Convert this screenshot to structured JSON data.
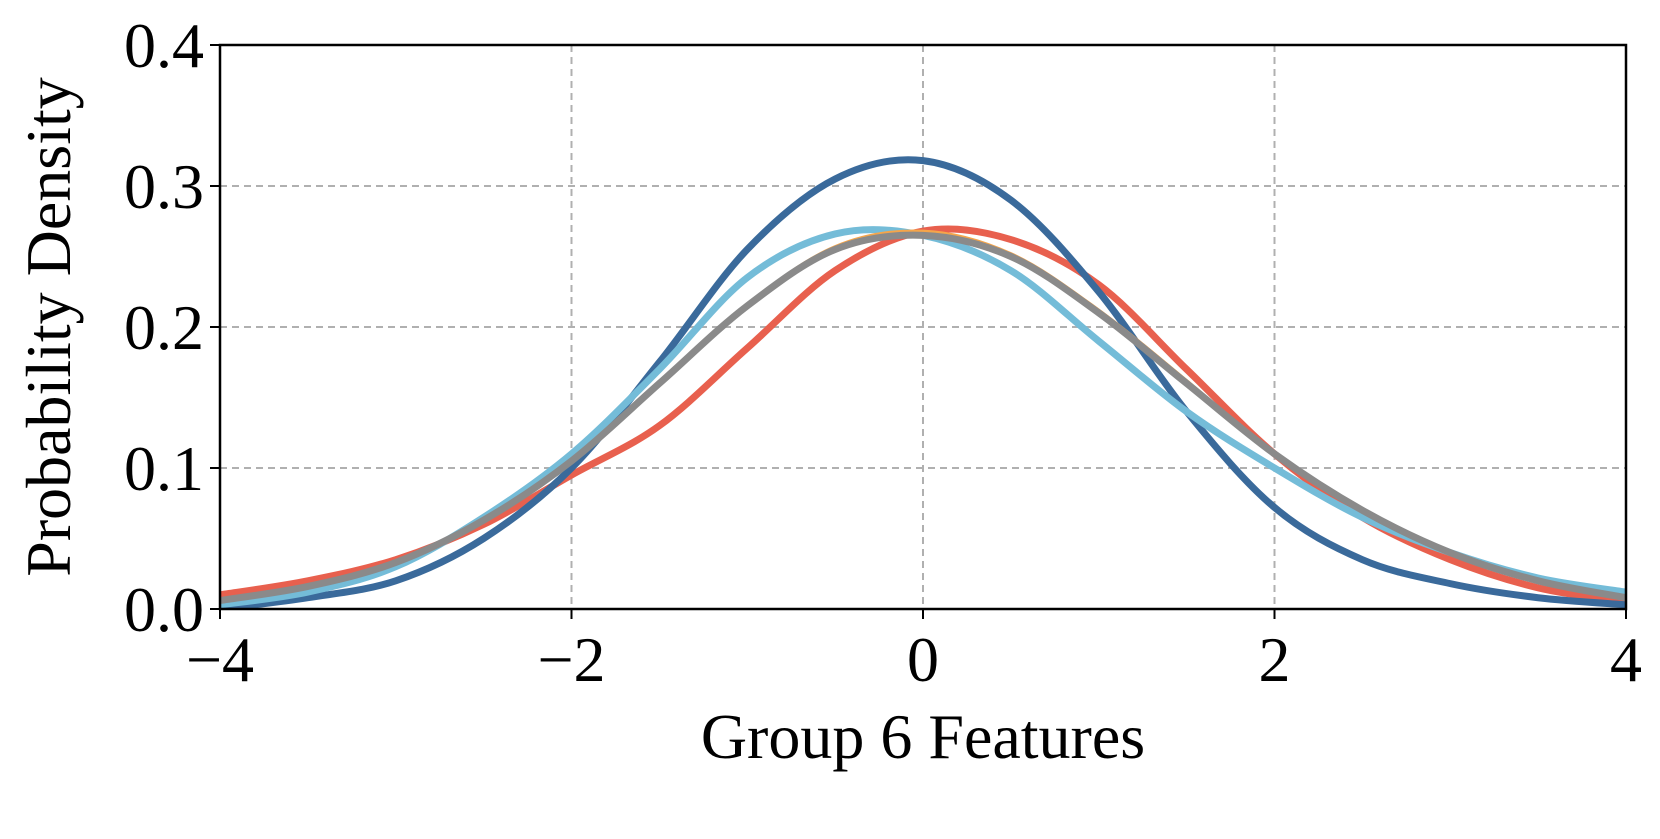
{
  "chart_data": {
    "type": "line",
    "x_label": "Group 6 Features",
    "y_label": "Probability Density",
    "x": [
      -4,
      -3.5,
      -3,
      -2.5,
      -2,
      -1.5,
      -1,
      -0.5,
      0,
      0.5,
      1,
      1.5,
      2,
      2.5,
      3,
      3.5,
      4
    ],
    "series": [
      {
        "color": "#e8604e",
        "width": 7,
        "values": [
          0.01,
          0.02,
          0.035,
          0.06,
          0.095,
          0.13,
          0.185,
          0.24,
          0.268,
          0.262,
          0.23,
          0.17,
          0.11,
          0.065,
          0.035,
          0.015,
          0.005
        ]
      },
      {
        "color": "#3a6a9b",
        "width": 7,
        "values": [
          0.0,
          0.008,
          0.02,
          0.05,
          0.1,
          0.175,
          0.255,
          0.305,
          0.318,
          0.29,
          0.225,
          0.14,
          0.072,
          0.035,
          0.018,
          0.008,
          0.003
        ]
      },
      {
        "color": "#74bcd8",
        "width": 7,
        "values": [
          0.003,
          0.012,
          0.03,
          0.065,
          0.11,
          0.17,
          0.235,
          0.266,
          0.265,
          0.24,
          0.19,
          0.14,
          0.1,
          0.065,
          0.04,
          0.022,
          0.012
        ]
      },
      {
        "color": "#f5a54a",
        "width": 3,
        "values": [
          0.006,
          0.016,
          0.033,
          0.063,
          0.105,
          0.16,
          0.216,
          0.257,
          0.268,
          0.252,
          0.212,
          0.162,
          0.11,
          0.07,
          0.04,
          0.02,
          0.008
        ]
      },
      {
        "color": "#8a8a8a",
        "width": 7,
        "values": [
          0.006,
          0.016,
          0.033,
          0.063,
          0.105,
          0.16,
          0.215,
          0.255,
          0.265,
          0.25,
          0.21,
          0.16,
          0.11,
          0.07,
          0.04,
          0.02,
          0.008
        ]
      }
    ],
    "xlim": [
      -4,
      4
    ],
    "ylim": [
      0,
      0.4
    ],
    "xticks": [
      {
        "value": -4,
        "label": "−4"
      },
      {
        "value": -2,
        "label": "−2"
      },
      0,
      2,
      4
    ],
    "yticks": [
      {
        "value": 0,
        "label": "0.0"
      },
      0.1,
      0.2,
      0.3,
      0.4
    ],
    "grid": true
  }
}
